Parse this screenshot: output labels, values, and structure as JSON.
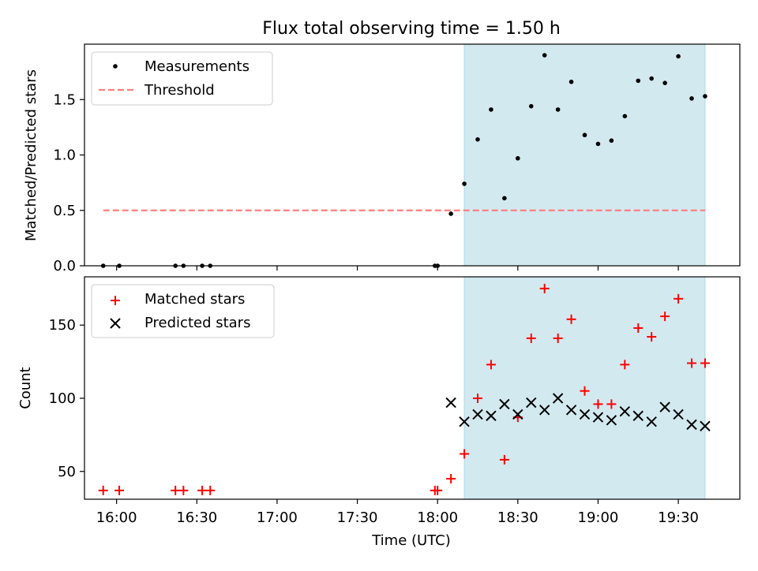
{
  "chart_data": [
    {
      "type": "scatter",
      "title": "Flux total observing time = 1.50 h",
      "xlabel": "",
      "ylabel": "Matched/Predicted stars",
      "x_unit": "time (UTC)",
      "xlim": [
        "15:48",
        "19:53"
      ],
      "ylim": [
        0,
        2.0
      ],
      "yticks": [
        0.0,
        0.5,
        1.0,
        1.5
      ],
      "ytick_labels": [
        "0.0",
        "0.5",
        "1.0",
        "1.5"
      ],
      "legend": {
        "position": "top-left",
        "entries": [
          "Measurements",
          "Threshold"
        ]
      },
      "shaded_region": {
        "from": "18:10",
        "to": "19:40",
        "color": "#d3e9f0"
      },
      "series": [
        {
          "name": "Measurements",
          "marker": "dot",
          "color": "#000000",
          "x": [
            "15:55",
            "16:01",
            "16:22",
            "16:25",
            "16:32",
            "16:35",
            "17:59",
            "18:00",
            "18:05",
            "18:10",
            "18:15",
            "18:20",
            "18:25",
            "18:30",
            "18:35",
            "18:40",
            "18:45",
            "18:50",
            "18:55",
            "19:00",
            "19:05",
            "19:10",
            "19:15",
            "19:20",
            "19:25",
            "19:30",
            "19:35",
            "19:40"
          ],
          "y": [
            0,
            0,
            0,
            0,
            0,
            0,
            0,
            0,
            0.47,
            0.74,
            1.14,
            1.41,
            0.61,
            0.97,
            1.44,
            1.9,
            1.41,
            1.66,
            1.18,
            1.1,
            1.13,
            1.35,
            1.67,
            1.69,
            1.65,
            1.89,
            1.51,
            1.53
          ]
        },
        {
          "name": "Threshold",
          "style": "dashed",
          "color": "#ff7f7f",
          "x": [
            "15:55",
            "19:40"
          ],
          "y": [
            0.5,
            0.5
          ]
        }
      ]
    },
    {
      "type": "scatter",
      "title": "",
      "xlabel": "Time (UTC)",
      "ylabel": "Count",
      "x_unit": "time (UTC)",
      "xlim": [
        "15:48",
        "19:53"
      ],
      "ylim": [
        31,
        183
      ],
      "yticks": [
        50,
        100,
        150
      ],
      "ytick_labels": [
        "50",
        "100",
        "150"
      ],
      "xticks": [
        "16:00",
        "16:30",
        "17:00",
        "17:30",
        "18:00",
        "18:30",
        "19:00",
        "19:30"
      ],
      "legend": {
        "position": "top-left",
        "entries": [
          "Matched stars",
          "Predicted stars"
        ]
      },
      "shaded_region": {
        "from": "18:10",
        "to": "19:40",
        "color": "#d3e9f0"
      },
      "series": [
        {
          "name": "Matched stars",
          "marker": "plus",
          "color": "#ff0000",
          "x": [
            "15:55",
            "16:01",
            "16:22",
            "16:25",
            "16:32",
            "16:35",
            "17:59",
            "18:00",
            "18:05",
            "18:10",
            "18:15",
            "18:20",
            "18:25",
            "18:30",
            "18:35",
            "18:40",
            "18:45",
            "18:50",
            "18:55",
            "19:00",
            "19:05",
            "19:10",
            "19:15",
            "19:20",
            "19:25",
            "19:30",
            "19:35",
            "19:40"
          ],
          "y": [
            37,
            37,
            37,
            37,
            37,
            37,
            37,
            37,
            45,
            62,
            100,
            123,
            58,
            87,
            141,
            175,
            141,
            154,
            105,
            96,
            96,
            123,
            148,
            142,
            156,
            168,
            124,
            124
          ]
        },
        {
          "name": "Predicted stars",
          "marker": "x",
          "color": "#000000",
          "x": [
            "18:05",
            "18:10",
            "18:15",
            "18:20",
            "18:25",
            "18:30",
            "18:35",
            "18:40",
            "18:45",
            "18:50",
            "18:55",
            "19:00",
            "19:05",
            "19:10",
            "19:15",
            "19:20",
            "19:25",
            "19:30",
            "19:35",
            "19:40"
          ],
          "y": [
            97,
            84,
            89,
            88,
            96,
            89,
            97,
            92,
            100,
            92,
            89,
            87,
            85,
            91,
            88,
            84,
            94,
            89,
            82,
            81
          ]
        }
      ]
    }
  ]
}
